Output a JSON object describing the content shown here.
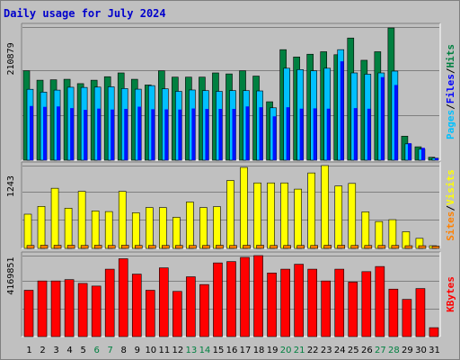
{
  "title": "Daily usage for July 2024",
  "chart_data": [
    {
      "type": "bar",
      "panel": "hits_files_pages",
      "categories": [
        "1",
        "2",
        "3",
        "4",
        "5",
        "6",
        "7",
        "8",
        "9",
        "10",
        "11",
        "12",
        "13",
        "14",
        "15",
        "16",
        "17",
        "18",
        "19",
        "20",
        "21",
        "22",
        "23",
        "24",
        "25",
        "26",
        "27",
        "28",
        "29",
        "30",
        "31"
      ],
      "weekend_days": [
        "6",
        "7",
        "13",
        "14",
        "20",
        "21",
        "27",
        "28"
      ],
      "ymax_label": "210879",
      "ymax": 210879,
      "series": [
        {
          "name": "Hits",
          "color": "#008040",
          "values": [
            143500,
            128400,
            129100,
            129900,
            122900,
            128400,
            134000,
            140100,
            129900,
            120700,
            143500,
            133300,
            133300,
            133300,
            140100,
            138500,
            143500,
            135000,
            93800,
            177400,
            165700,
            170100,
            174100,
            169300,
            196100,
            160400,
            174100,
            212300,
            38600,
            21500,
            4700
          ]
        },
        {
          "name": "Files",
          "color": "#0000ff",
          "values": [
            87000,
            85600,
            86300,
            83600,
            80800,
            82800,
            81300,
            82300,
            85900,
            81800,
            81600,
            81300,
            83000,
            82200,
            82300,
            82300,
            86300,
            85000,
            70400,
            85000,
            82700,
            83200,
            82700,
            158700,
            83600,
            82600,
            133300,
            120700,
            27300,
            19900,
            3300
          ]
        },
        {
          "name": "Pages",
          "color": "#00c0ff",
          "values": [
            113800,
            109300,
            112500,
            117100,
            116800,
            117300,
            117800,
            115000,
            114000,
            119700,
            114600,
            110500,
            112700,
            111700,
            110500,
            111700,
            111700,
            111200,
            84100,
            147600,
            145400,
            143500,
            147600,
            177400,
            140100,
            138000,
            140100,
            143000,
            26200,
            17700,
            3300
          ]
        }
      ],
      "legend_right": [
        "Pages",
        "Files",
        "Hits"
      ]
    },
    {
      "type": "bar",
      "panel": "visits_sites",
      "categories": [
        "1",
        "2",
        "3",
        "4",
        "5",
        "6",
        "7",
        "8",
        "9",
        "10",
        "11",
        "12",
        "13",
        "14",
        "15",
        "16",
        "17",
        "18",
        "19",
        "20",
        "21",
        "22",
        "23",
        "24",
        "25",
        "26",
        "27",
        "28",
        "29",
        "30",
        "31"
      ],
      "ymax_label": "1243",
      "ymax": 1243,
      "series": [
        {
          "name": "Visits",
          "color": "#ffff00",
          "values": [
            525,
            645,
            923,
            617,
            875,
            575,
            565,
            875,
            547,
            627,
            627,
            477,
            712,
            627,
            641,
            1042,
            1243,
            1005,
            1005,
            1005,
            910,
            1158,
            1271,
            958,
            997,
            561,
            412,
            441,
            256,
            154,
            41
          ]
        },
        {
          "name": "Sites",
          "color": "#ff8000",
          "values": [
            45,
            48,
            48,
            48,
            45,
            48,
            45,
            48,
            45,
            45,
            45,
            45,
            45,
            45,
            48,
            45,
            48,
            48,
            45,
            45,
            45,
            45,
            48,
            48,
            45,
            45,
            45,
            45,
            41,
            41,
            35
          ]
        }
      ],
      "legend_right": [
        "Sites",
        "Visits"
      ]
    },
    {
      "type": "bar",
      "panel": "kbytes",
      "categories": [
        "1",
        "2",
        "3",
        "4",
        "5",
        "6",
        "7",
        "8",
        "9",
        "10",
        "11",
        "12",
        "13",
        "14",
        "15",
        "16",
        "17",
        "18",
        "19",
        "20",
        "21",
        "22",
        "23",
        "24",
        "25",
        "26",
        "27",
        "28",
        "29",
        "30",
        "31"
      ],
      "ymax_label": "4169851",
      "ymax": 4169851,
      "series": [
        {
          "name": "KBytes",
          "color": "#ff0000",
          "values": [
            2440000,
            2930000,
            2930000,
            3000000,
            2800000,
            2660000,
            3550000,
            4100000,
            3290000,
            2440000,
            3620000,
            2380000,
            3150000,
            2740000,
            3880000,
            3950000,
            4170000,
            4290000,
            3350000,
            3550000,
            3810000,
            3550000,
            2930000,
            3550000,
            2870000,
            3420000,
            3690000,
            2500000,
            1960000,
            2530000,
            470000
          ]
        }
      ],
      "legend_right": [
        "KBytes"
      ]
    }
  ],
  "colors": {
    "background": "#c0c0c0",
    "plot_background": "#c0c0c0",
    "title": "#0000cc",
    "weekday_label": "#000000",
    "weekend_label": "#008040"
  }
}
